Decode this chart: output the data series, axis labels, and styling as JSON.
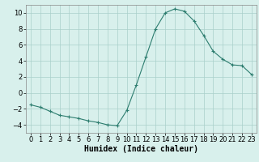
{
  "x": [
    0,
    1,
    2,
    3,
    4,
    5,
    6,
    7,
    8,
    9,
    10,
    11,
    12,
    13,
    14,
    15,
    16,
    17,
    18,
    19,
    20,
    21,
    22,
    23
  ],
  "y": [
    -1.5,
    -1.8,
    -2.3,
    -2.8,
    -3.0,
    -3.2,
    -3.5,
    -3.7,
    -4.0,
    -4.1,
    -2.2,
    1.0,
    4.5,
    8.0,
    10.0,
    10.5,
    10.2,
    9.0,
    7.2,
    5.2,
    4.2,
    3.5,
    3.4,
    2.3
  ],
  "xlabel": "Humidex (Indice chaleur)",
  "line_color": "#2d7d6f",
  "marker": "+",
  "marker_size": 3,
  "bg_color": "#d8f0ec",
  "grid_color": "#aacfca",
  "xlim": [
    -0.5,
    23.5
  ],
  "ylim": [
    -5,
    11
  ],
  "yticks": [
    -4,
    -2,
    0,
    2,
    4,
    6,
    8,
    10
  ],
  "xticks": [
    0,
    1,
    2,
    3,
    4,
    5,
    6,
    7,
    8,
    9,
    10,
    11,
    12,
    13,
    14,
    15,
    16,
    17,
    18,
    19,
    20,
    21,
    22,
    23
  ],
  "tick_fontsize": 6,
  "xlabel_fontsize": 7,
  "linewidth": 0.8,
  "markeredgewidth": 0.8
}
